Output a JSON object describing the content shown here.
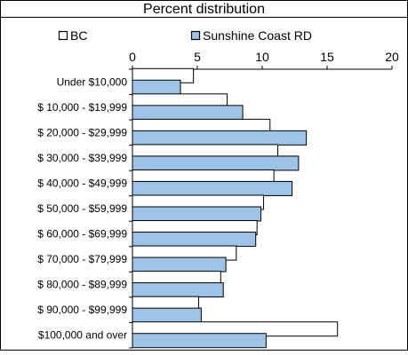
{
  "chart_data": {
    "type": "bar",
    "orientation": "horizontal",
    "title": "Percent distribution",
    "categories": [
      "Under $10,000",
      "$  10,000 - $19,999",
      "$  20,000 - $29,999",
      "$  30,000 - $39,999",
      "$  40,000 - $49,999",
      "$  50,000 - $59,999",
      "$  60,000 - $69,999",
      "$  70,000 - $79,999",
      "$  80,000 - $89,999",
      "$  90,000 - $99,999",
      "$100,000 and over"
    ],
    "series": [
      {
        "name": "BC",
        "color": "#ffffff",
        "values": [
          4.7,
          7.3,
          10.6,
          11.2,
          10.9,
          10.1,
          9.6,
          8.0,
          6.8,
          5.1,
          15.8
        ]
      },
      {
        "name": "Sunshine Coast RD",
        "color": "#9dc3e6",
        "values": [
          3.7,
          8.5,
          13.4,
          12.8,
          12.3,
          9.9,
          9.5,
          7.2,
          7.0,
          5.3,
          10.3
        ]
      }
    ],
    "x_ticks": [
      0,
      5,
      10,
      15,
      20
    ],
    "xlim": [
      0,
      20
    ],
    "grid": false,
    "legend_position": "top"
  }
}
